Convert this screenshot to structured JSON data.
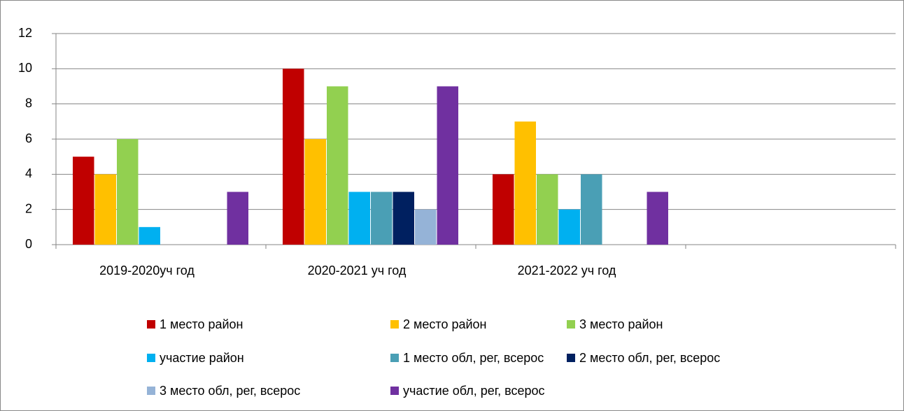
{
  "chart_data": {
    "type": "bar",
    "categories": [
      "2019-2020уч год",
      "2020-2021 уч год",
      "2021-2022 уч год",
      null
    ],
    "series": [
      {
        "name": "1 место район",
        "color": "#c00000",
        "values": [
          5,
          10,
          4,
          null
        ]
      },
      {
        "name": "2 место район",
        "color": "#ffc000",
        "values": [
          4,
          6,
          7,
          null
        ]
      },
      {
        "name": "3 место район",
        "color": "#92d050",
        "values": [
          6,
          9,
          4,
          null
        ]
      },
      {
        "name": "участие район",
        "color": "#00b0f0",
        "values": [
          1,
          3,
          2,
          null
        ]
      },
      {
        "name": "1 место обл, рег, всерос",
        "color": "#4a9fb5",
        "values": [
          null,
          3,
          4,
          null
        ]
      },
      {
        "name": "2 место обл, рег, всерос",
        "color": "#002060",
        "values": [
          null,
          3,
          null,
          null
        ]
      },
      {
        "name": "3 место обл, рег, всерос",
        "color": "#95b3d7",
        "values": [
          null,
          2,
          null,
          null
        ]
      },
      {
        "name": "участие обл, рег, всерос",
        "color": "#7030a0",
        "values": [
          3,
          9,
          3,
          null
        ]
      }
    ],
    "ylim": [
      0,
      12
    ],
    "yticks": [
      0,
      2,
      4,
      6,
      8,
      10,
      12
    ],
    "grid": true,
    "legend": "bottom"
  }
}
